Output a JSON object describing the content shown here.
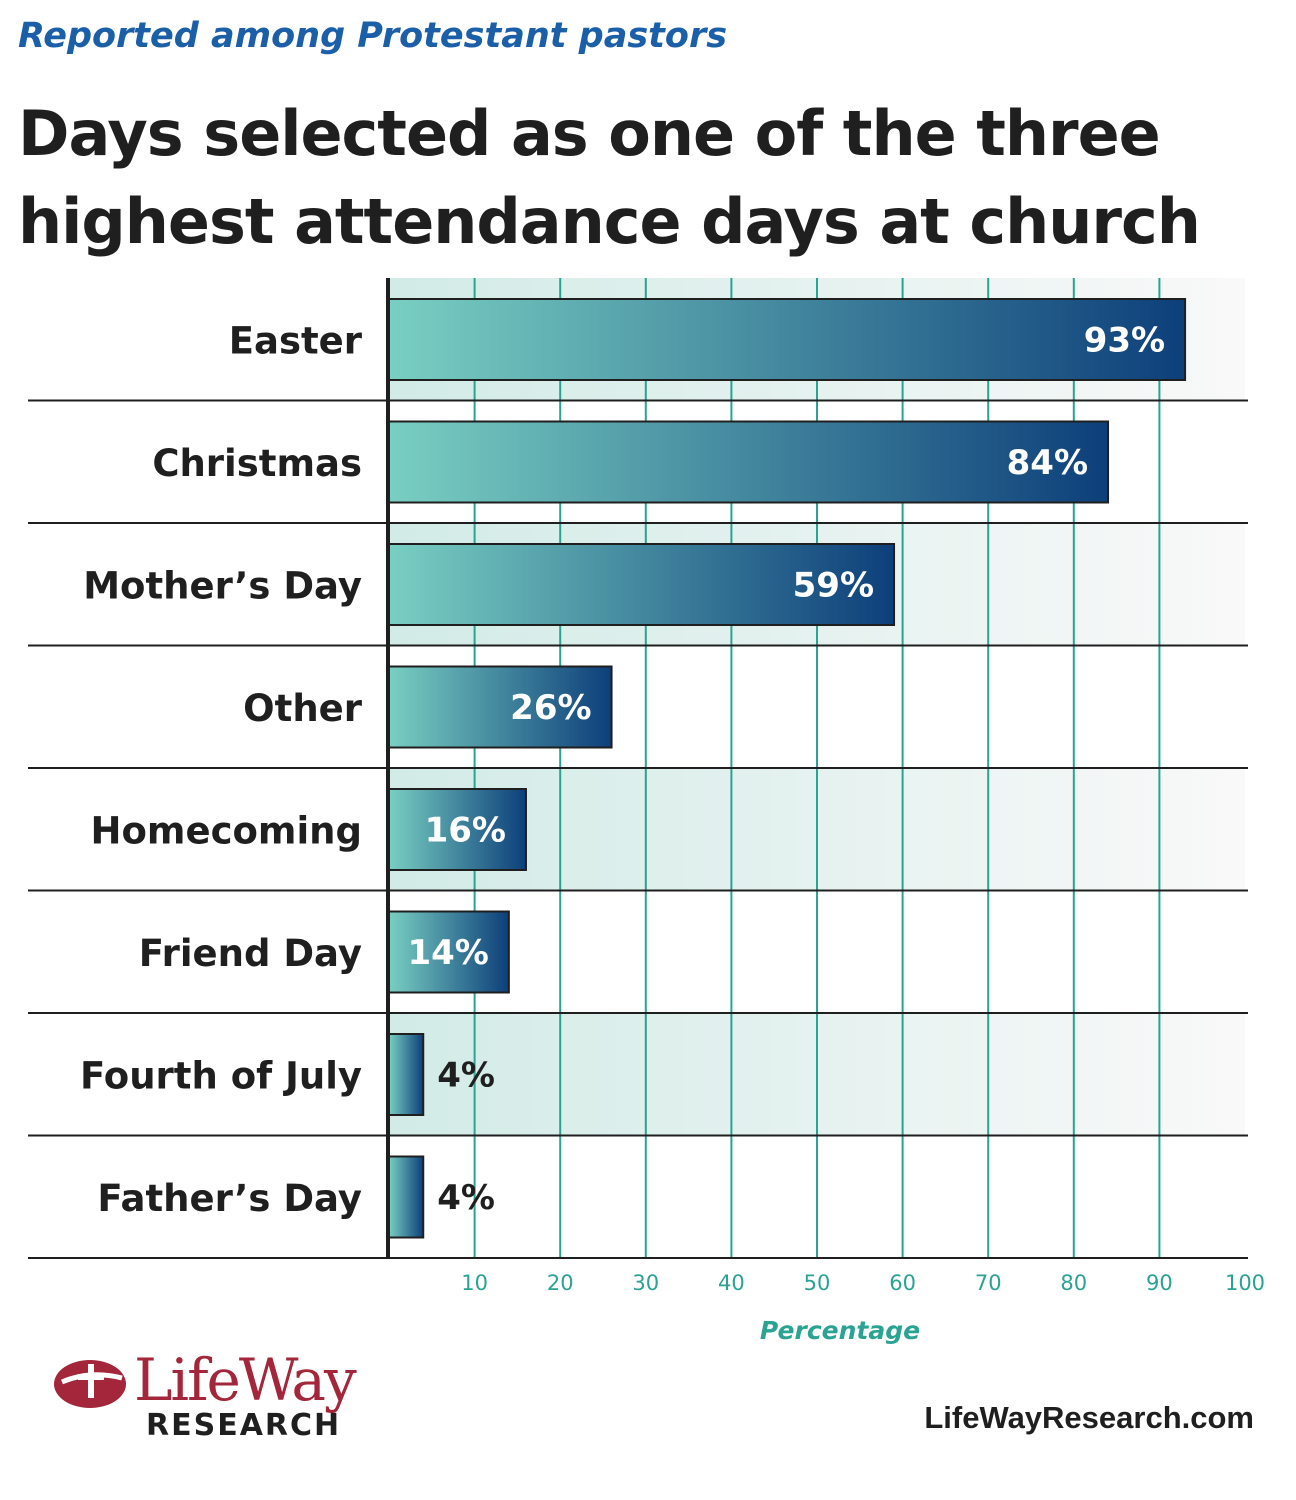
{
  "header": {
    "subtitle": "Reported among Protestant pastors",
    "title": "Days selected as one of the three highest attendance days at church"
  },
  "chart_data": {
    "type": "bar",
    "orientation": "horizontal",
    "categories": [
      "Easter",
      "Christmas",
      "Mother’s Day",
      "Other",
      "Homecoming",
      "Friend Day",
      "Fourth of July",
      "Father’s Day"
    ],
    "values": [
      93,
      84,
      59,
      26,
      16,
      14,
      4,
      4
    ],
    "value_labels": [
      "93%",
      "84%",
      "59%",
      "26%",
      "16%",
      "14%",
      "4%",
      "4%"
    ],
    "xlabel": "Percentage",
    "xlim": [
      0,
      100
    ],
    "x_ticks": [
      10,
      20,
      30,
      40,
      50,
      60,
      70,
      80,
      90,
      100
    ],
    "grid": true,
    "colors": {
      "bar_start": "#79cfc2",
      "bar_end": "#0d3f7a",
      "grid": "#2ba393",
      "band": "#d2ebe6",
      "label_dark": "#1f1f1f",
      "label_light": "#ffffff"
    }
  },
  "footer": {
    "logo_word": "LifeWay",
    "logo_sub": "RESEARCH",
    "website": "LifeWayResearch.com"
  }
}
